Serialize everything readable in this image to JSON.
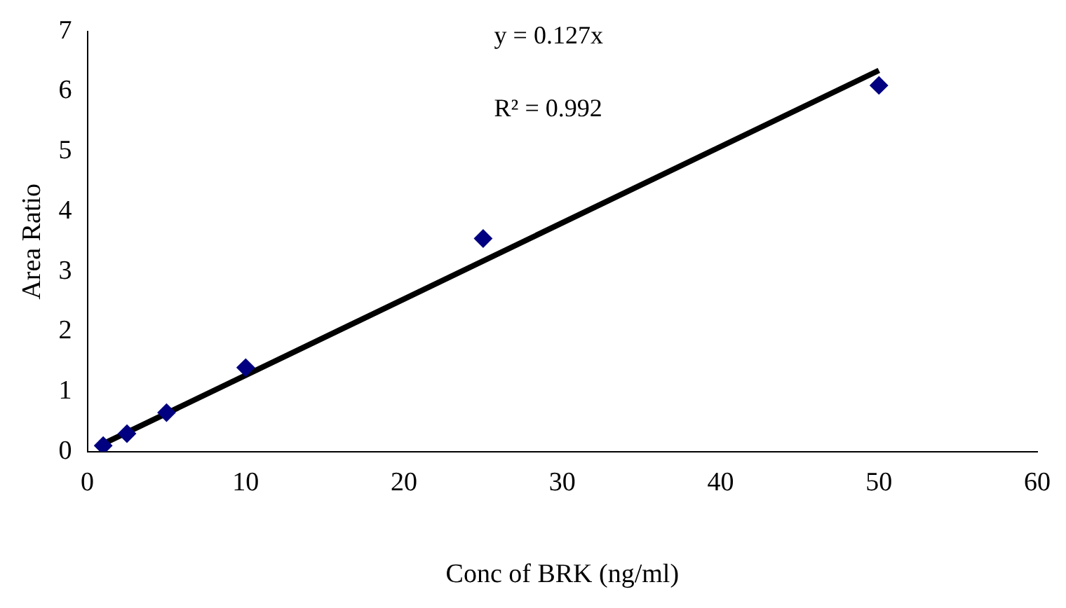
{
  "chart_data": {
    "type": "scatter",
    "xlabel": "Conc of BRK (ng/ml)",
    "ylabel": "Area Ratio",
    "series": [
      {
        "type": "scatter",
        "color": "#000080",
        "x": [
          1,
          2.5,
          5,
          10,
          25,
          50
        ],
        "values": [
          0.1,
          0.3,
          0.65,
          1.4,
          3.55,
          6.1
        ],
        "marker": "diamond"
      },
      {
        "type": "line",
        "color": "#000000",
        "x": [
          1,
          50
        ],
        "values": [
          0.13,
          6.35
        ],
        "marker": "none"
      }
    ],
    "xlim": [
      0,
      60
    ],
    "xticks": [
      0,
      10,
      20,
      30,
      40,
      50,
      60
    ],
    "ylim": [
      0,
      7
    ],
    "yticks": [
      0,
      1,
      2,
      3,
      4,
      5,
      6,
      7
    ],
    "annotations": [
      "y = 0.127x",
      "R² = 0.992"
    ],
    "grid": false,
    "legend": false
  }
}
